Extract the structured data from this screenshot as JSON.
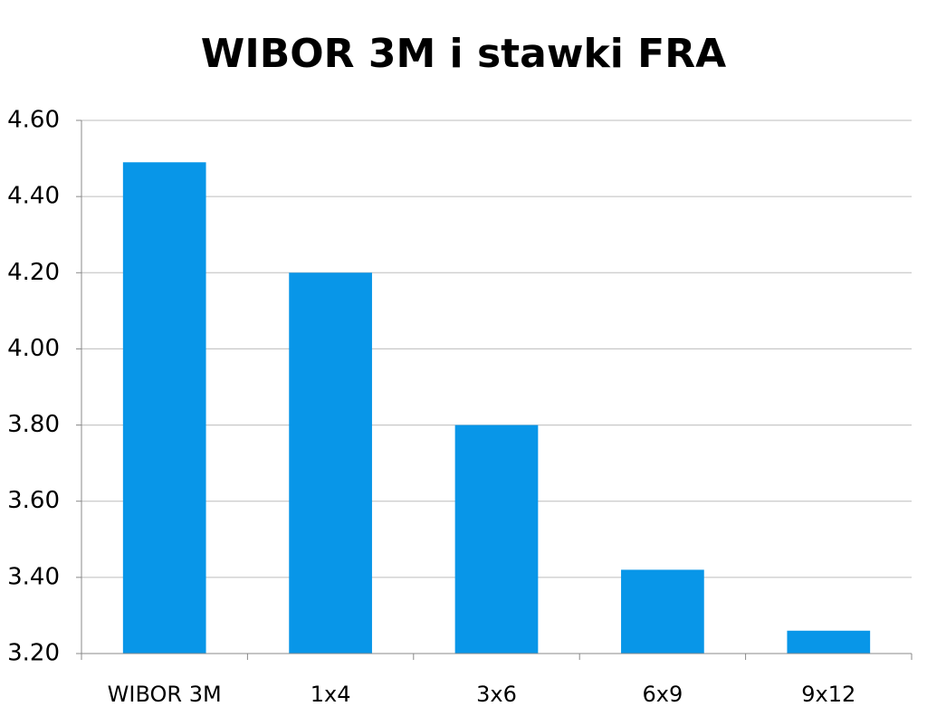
{
  "chart_data": {
    "type": "bar",
    "title": "WIBOR 3M i stawki FRA",
    "categories": [
      "WIBOR 3M",
      "1x4",
      "3x6",
      "6x9",
      "9x12"
    ],
    "values": [
      4.49,
      4.2,
      3.8,
      3.42,
      3.26
    ],
    "color": "#0896e8",
    "ylim": [
      3.2,
      4.6
    ],
    "yticks": [
      {
        "value": 3.2,
        "label": "3.20"
      },
      {
        "value": 3.4,
        "label": "3.40"
      },
      {
        "value": 3.6,
        "label": "3.60"
      },
      {
        "value": 3.8,
        "label": "3.80"
      },
      {
        "value": 4.0,
        "label": "4.00"
      },
      {
        "value": 4.2,
        "label": "4.20"
      },
      {
        "value": 4.4,
        "label": "4.40"
      },
      {
        "value": 4.6,
        "label": "4.60"
      }
    ],
    "grid": true
  }
}
